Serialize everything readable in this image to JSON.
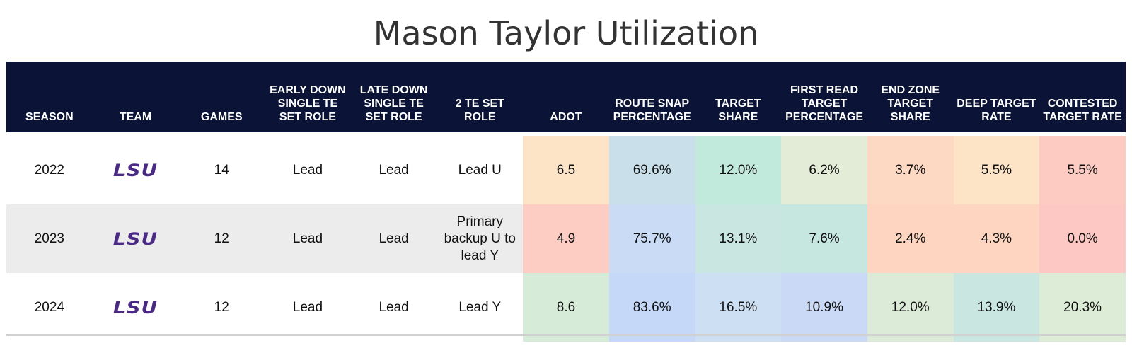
{
  "title": "Mason Taylor Utilization",
  "chart_data": {
    "type": "table",
    "title": "Mason Taylor Utilization",
    "columns": [
      "SEASON",
      "TEAM",
      "GAMES",
      "EARLY DOWN SINGLE TE SET ROLE",
      "LATE DOWN SINGLE TE SET ROLE",
      "2 TE SET ROLE",
      "ADOT",
      "ROUTE SNAP PERCENTAGE",
      "TARGET SHARE",
      "FIRST READ TARGET PERCENTAGE",
      "END ZONE TARGET SHARE",
      "DEEP TARGET RATE",
      "CONTESTED TARGET RATE"
    ],
    "rows": [
      {
        "season": "2022",
        "team": "LSU",
        "games": "14",
        "early": "Lead",
        "late": "Lead",
        "two_te": "Lead U",
        "adot": "6.5",
        "route": "69.6%",
        "target_share": "12.0%",
        "first_read": "6.2%",
        "end_zone": "3.7%",
        "deep": "5.5%",
        "contested": "5.5%"
      },
      {
        "season": "2023",
        "team": "LSU",
        "games": "12",
        "early": "Lead",
        "late": "Lead",
        "two_te": "Primary backup U to lead Y",
        "adot": "4.9",
        "route": "75.7%",
        "target_share": "13.1%",
        "first_read": "7.6%",
        "end_zone": "2.4%",
        "deep": "4.3%",
        "contested": "0.0%"
      },
      {
        "season": "2024",
        "team": "LSU",
        "games": "12",
        "early": "Lead",
        "late": "Lead",
        "two_te": "Lead Y",
        "adot": "8.6",
        "route": "83.6%",
        "target_share": "16.5%",
        "first_read": "10.9%",
        "end_zone": "12.0%",
        "deep": "13.9%",
        "contested": "20.3%"
      }
    ],
    "cell_colors": [
      [
        "#fde4c7",
        "#c9e0ea",
        "#c2eadc",
        "#e3ecd6",
        "#fdd8c3",
        "#fde4c7",
        "#fdcbc2"
      ],
      [
        "#fdcdc4",
        "#cadcf5",
        "#c9e6e0",
        "#c6e6e0",
        "#fdd5c0",
        "#fdd5c0",
        "#fdc8c4"
      ],
      [
        "#d6ecd8",
        "#c6d8f8",
        "#cde0f3",
        "#cadaf6",
        "#dcebd7",
        "#c9e6e0",
        "#dcecd6"
      ]
    ]
  }
}
